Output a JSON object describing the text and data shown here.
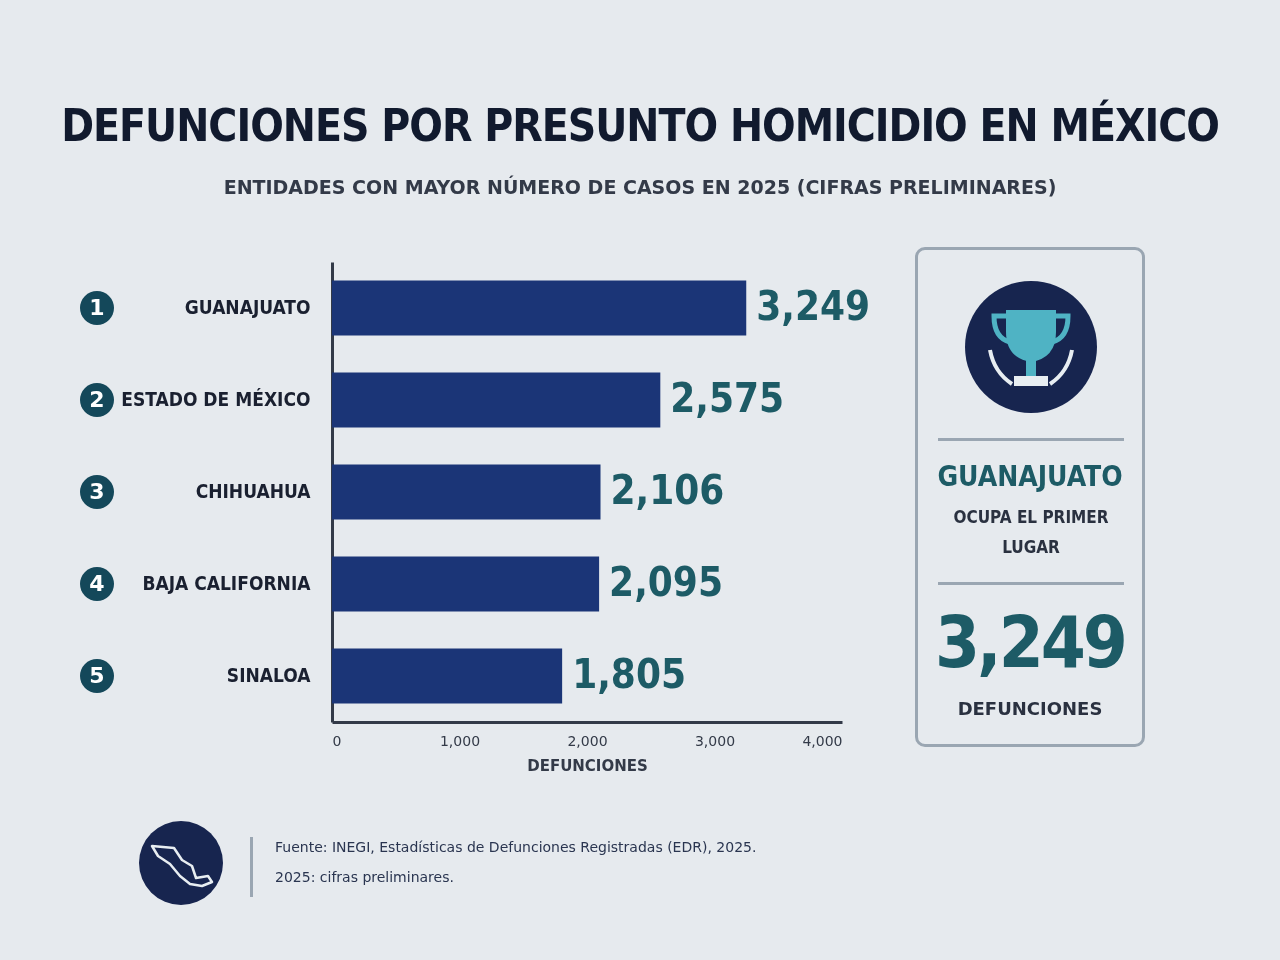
{
  "chart_data": {
    "type": "bar",
    "orientation": "horizontal",
    "title": "DEFUNCIONES POR PRESUNTO HOMICIDIO EN MÉXICO",
    "subtitle": "ENTIDADES CON MAYOR NÚMERO DE CASOS EN 2025 (CIFRAS PRELIMINARES)",
    "categories": [
      "GUANAJUATO",
      "ESTADO DE MÉXICO",
      "CHIHUAHUA",
      "BAJA CALIFORNIA",
      "SINALOA"
    ],
    "values": [
      3249,
      2575,
      2106,
      2095,
      1805
    ],
    "color": "#1b3577",
    "xlim": [
      0,
      4000
    ],
    "xticks": [
      0,
      {
        "value": 1000,
        "label": "1,000"
      },
      {
        "value": 2000,
        "label": "2,000"
      },
      {
        "value": 3000,
        "label": "3,000"
      },
      {
        "value": 4000,
        "label": "4,000"
      }
    ],
    "xlabel": "DEFUNCIONES",
    "value_labels": [
      "3,249",
      "2,575",
      "2,106",
      "2,095",
      "1,805"
    ],
    "grid": false,
    "annotations": [
      "1",
      "2",
      "3",
      "4",
      "5",
      "GUANAJUATO",
      "OCUPA EL PRIMER LUGAR",
      "3,249",
      "DEFUNCIONES",
      "Fuente: INEGI, Estadísticas de Defunciones Registradas (EDR), 2025.",
      "2025: cifras preliminares."
    ]
  }
}
